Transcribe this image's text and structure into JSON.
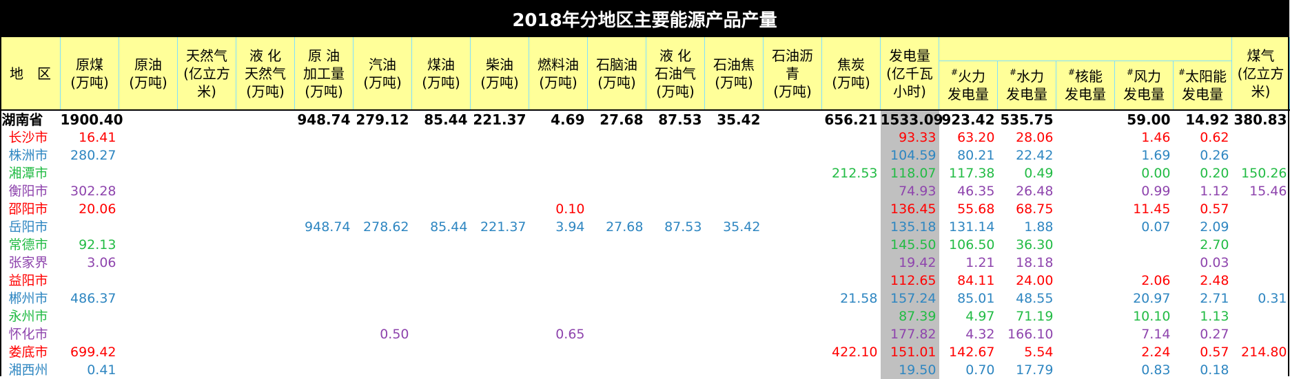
{
  "title": "2018年分地区主要能源产品产量",
  "headers": {
    "region": "地　区",
    "coal": "原煤\n(万吨)",
    "crude_oil": "原油\n(万吨)",
    "natural_gas": "天然气\n(亿立方\n米)",
    "lng": "液 化\n天然气\n(万吨)",
    "crude_processed": "原 油\n加工量\n(万吨)",
    "gasoline": "汽油\n(万吨)",
    "kerosene": "煤油\n(万吨)",
    "diesel": "柴油\n(万吨)",
    "fuel_oil": "燃料油\n(万吨)",
    "paraffin": "石脑油\n(万吨)",
    "lpg": "液 化\n石油气\n(万吨)",
    "petroleum_coke": "石油焦\n(万吨)",
    "asphalt": "石油沥\n青\n(万吨)",
    "coke": "焦炭\n(万吨)",
    "power": "发电量\n(亿千瓦\n小时)",
    "thermal": "火力\n发电量",
    "hydro": "水力\n发电量",
    "nuclear": "核能\n发电量",
    "wind": "风力\n发电量",
    "solar": "太阳能\n发电量",
    "gas": "煤气\n(亿立方\n米)",
    "sub_marker": "#"
  },
  "rows": [
    {
      "name": "湖南省",
      "color": "total",
      "coal": "1900.40",
      "crude_oil": "",
      "natural_gas": "",
      "lng": "",
      "crude_processed": "948.74",
      "gasoline": "279.12",
      "kerosene": "85.44",
      "diesel": "221.37",
      "fuel_oil": "4.69",
      "paraffin": "27.68",
      "lpg": "87.53",
      "petroleum_coke": "35.42",
      "asphalt": "",
      "coke": "656.21",
      "power": "1533.09",
      "thermal": "923.42",
      "hydro": "535.75",
      "nuclear": "",
      "wind": "59.00",
      "solar": "14.92",
      "gas": "380.83"
    },
    {
      "name": "长沙市",
      "color": "red",
      "coal": "16.41",
      "crude_oil": "",
      "natural_gas": "",
      "lng": "",
      "crude_processed": "",
      "gasoline": "",
      "kerosene": "",
      "diesel": "",
      "fuel_oil": "",
      "paraffin": "",
      "lpg": "",
      "petroleum_coke": "",
      "asphalt": "",
      "coke": "",
      "power": "93.33",
      "thermal": "63.20",
      "hydro": "28.06",
      "nuclear": "",
      "wind": "1.46",
      "solar": "0.62",
      "gas": ""
    },
    {
      "name": "株洲市",
      "color": "blue",
      "coal": "280.27",
      "crude_oil": "",
      "natural_gas": "",
      "lng": "",
      "crude_processed": "",
      "gasoline": "",
      "kerosene": "",
      "diesel": "",
      "fuel_oil": "",
      "paraffin": "",
      "lpg": "",
      "petroleum_coke": "",
      "asphalt": "",
      "coke": "",
      "power": "104.59",
      "thermal": "80.21",
      "hydro": "22.42",
      "nuclear": "",
      "wind": "1.69",
      "solar": "0.26",
      "gas": ""
    },
    {
      "name": "湘潭市",
      "color": "green",
      "coal": "",
      "crude_oil": "",
      "natural_gas": "",
      "lng": "",
      "crude_processed": "",
      "gasoline": "",
      "kerosene": "",
      "diesel": "",
      "fuel_oil": "",
      "paraffin": "",
      "lpg": "",
      "petroleum_coke": "",
      "asphalt": "",
      "coke": "212.53",
      "power": "118.07",
      "thermal": "117.38",
      "hydro": "0.49",
      "nuclear": "",
      "wind": "0.00",
      "solar": "0.20",
      "gas": "150.26"
    },
    {
      "name": "衡阳市",
      "color": "purple",
      "coal": "302.28",
      "crude_oil": "",
      "natural_gas": "",
      "lng": "",
      "crude_processed": "",
      "gasoline": "",
      "kerosene": "",
      "diesel": "",
      "fuel_oil": "",
      "paraffin": "",
      "lpg": "",
      "petroleum_coke": "",
      "asphalt": "",
      "coke": "",
      "power": "74.93",
      "thermal": "46.35",
      "hydro": "26.48",
      "nuclear": "",
      "wind": "0.99",
      "solar": "1.12",
      "gas": "15.46"
    },
    {
      "name": "邵阳市",
      "color": "red",
      "coal": "20.06",
      "crude_oil": "",
      "natural_gas": "",
      "lng": "",
      "crude_processed": "",
      "gasoline": "",
      "kerosene": "",
      "diesel": "",
      "fuel_oil": "0.10",
      "paraffin": "",
      "lpg": "",
      "petroleum_coke": "",
      "asphalt": "",
      "coke": "",
      "power": "136.45",
      "thermal": "55.68",
      "hydro": "68.75",
      "nuclear": "",
      "wind": "11.45",
      "solar": "0.57",
      "gas": ""
    },
    {
      "name": "岳阳市",
      "color": "blue",
      "coal": "",
      "crude_oil": "",
      "natural_gas": "",
      "lng": "",
      "crude_processed": "948.74",
      "gasoline": "278.62",
      "kerosene": "85.44",
      "diesel": "221.37",
      "fuel_oil": "3.94",
      "paraffin": "27.68",
      "lpg": "87.53",
      "petroleum_coke": "35.42",
      "asphalt": "",
      "coke": "",
      "power": "135.18",
      "thermal": "131.14",
      "hydro": "1.88",
      "nuclear": "",
      "wind": "0.07",
      "solar": "2.09",
      "gas": ""
    },
    {
      "name": "常德市",
      "color": "green",
      "coal": "92.13",
      "crude_oil": "",
      "natural_gas": "",
      "lng": "",
      "crude_processed": "",
      "gasoline": "",
      "kerosene": "",
      "diesel": "",
      "fuel_oil": "",
      "paraffin": "",
      "lpg": "",
      "petroleum_coke": "",
      "asphalt": "",
      "coke": "",
      "power": "145.50",
      "thermal": "106.50",
      "hydro": "36.30",
      "nuclear": "",
      "wind": "",
      "solar": "2.70",
      "gas": ""
    },
    {
      "name": "张家界",
      "color": "purple",
      "coal": "3.06",
      "crude_oil": "",
      "natural_gas": "",
      "lng": "",
      "crude_processed": "",
      "gasoline": "",
      "kerosene": "",
      "diesel": "",
      "fuel_oil": "",
      "paraffin": "",
      "lpg": "",
      "petroleum_coke": "",
      "asphalt": "",
      "coke": "",
      "power": "19.42",
      "thermal": "1.21",
      "hydro": "18.18",
      "nuclear": "",
      "wind": "",
      "solar": "0.03",
      "gas": ""
    },
    {
      "name": "益阳市",
      "color": "red",
      "coal": "",
      "crude_oil": "",
      "natural_gas": "",
      "lng": "",
      "crude_processed": "",
      "gasoline": "",
      "kerosene": "",
      "diesel": "",
      "fuel_oil": "",
      "paraffin": "",
      "lpg": "",
      "petroleum_coke": "",
      "asphalt": "",
      "coke": "",
      "power": "112.65",
      "thermal": "84.11",
      "hydro": "24.00",
      "nuclear": "",
      "wind": "2.06",
      "solar": "2.48",
      "gas": ""
    },
    {
      "name": "郴州市",
      "color": "blue",
      "coal": "486.37",
      "crude_oil": "",
      "natural_gas": "",
      "lng": "",
      "crude_processed": "",
      "gasoline": "",
      "kerosene": "",
      "diesel": "",
      "fuel_oil": "",
      "paraffin": "",
      "lpg": "",
      "petroleum_coke": "",
      "asphalt": "",
      "coke": "21.58",
      "power": "157.24",
      "thermal": "85.01",
      "hydro": "48.55",
      "nuclear": "",
      "wind": "20.97",
      "solar": "2.71",
      "gas": "0.31"
    },
    {
      "name": "永州市",
      "color": "green",
      "coal": "",
      "crude_oil": "",
      "natural_gas": "",
      "lng": "",
      "crude_processed": "",
      "gasoline": "",
      "kerosene": "",
      "diesel": "",
      "fuel_oil": "",
      "paraffin": "",
      "lpg": "",
      "petroleum_coke": "",
      "asphalt": "",
      "coke": "",
      "power": "87.39",
      "thermal": "4.97",
      "hydro": "71.19",
      "nuclear": "",
      "wind": "10.10",
      "solar": "1.13",
      "gas": ""
    },
    {
      "name": "怀化市",
      "color": "purple",
      "coal": "",
      "crude_oil": "",
      "natural_gas": "",
      "lng": "",
      "crude_processed": "",
      "gasoline": "0.50",
      "kerosene": "",
      "diesel": "",
      "fuel_oil": "0.65",
      "paraffin": "",
      "lpg": "",
      "petroleum_coke": "",
      "asphalt": "",
      "coke": "",
      "power": "177.82",
      "thermal": "4.32",
      "hydro": "166.10",
      "nuclear": "",
      "wind": "7.14",
      "solar": "0.27",
      "gas": ""
    },
    {
      "name": "娄底市",
      "color": "red",
      "coal": "699.42",
      "crude_oil": "",
      "natural_gas": "",
      "lng": "",
      "crude_processed": "",
      "gasoline": "",
      "kerosene": "",
      "diesel": "",
      "fuel_oil": "",
      "paraffin": "",
      "lpg": "",
      "petroleum_coke": "",
      "asphalt": "",
      "coke": "422.10",
      "power": "151.01",
      "thermal": "142.67",
      "hydro": "5.54",
      "nuclear": "",
      "wind": "2.24",
      "solar": "0.57",
      "gas": "214.80"
    },
    {
      "name": "湘西州",
      "color": "blue",
      "coal": "0.41",
      "crude_oil": "",
      "natural_gas": "",
      "lng": "",
      "crude_processed": "",
      "gasoline": "",
      "kerosene": "",
      "diesel": "",
      "fuel_oil": "",
      "paraffin": "",
      "lpg": "",
      "petroleum_coke": "",
      "asphalt": "",
      "coke": "",
      "power": "19.50",
      "thermal": "0.70",
      "hydro": "17.79",
      "nuclear": "",
      "wind": "0.83",
      "solar": "0.18",
      "gas": ""
    }
  ],
  "colors": {
    "header_bg": "#ffff99",
    "title_bg": "#000000",
    "power_col_bg": "#c0c0c0",
    "red": "#ff0000",
    "blue": "#2e86c1",
    "green": "#22bb44",
    "purple": "#8e44ad"
  }
}
